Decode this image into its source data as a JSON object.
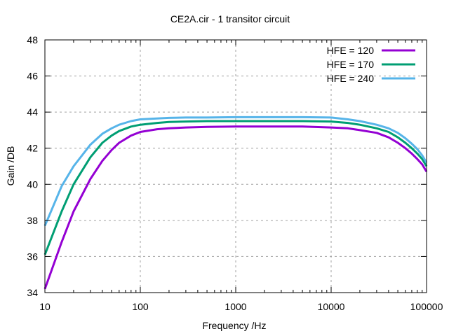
{
  "chart_data": {
    "type": "line",
    "title": "CE2A.cir - 1 transitor circuit",
    "xlabel": "Frequency /Hz",
    "ylabel": "Gain /DB",
    "xscale": "log",
    "xlim": [
      10,
      100000
    ],
    "ylim": [
      34,
      48
    ],
    "xticks": [
      10,
      100,
      1000,
      10000,
      100000
    ],
    "xtick_labels": [
      "10",
      "100",
      "1000",
      "10000",
      "100000"
    ],
    "yticks": [
      34,
      36,
      38,
      40,
      42,
      44,
      46,
      48
    ],
    "ytick_labels": [
      "34",
      "36",
      "38",
      "40",
      "42",
      "44",
      "46",
      "48"
    ],
    "grid": true,
    "legend_position": "top-right",
    "series": [
      {
        "name": "HFE = 120",
        "color": "#9400d3",
        "x": [
          10,
          15,
          20,
          30,
          40,
          50,
          60,
          80,
          100,
          150,
          200,
          300,
          500,
          1000,
          2000,
          5000,
          10000,
          15000,
          20000,
          30000,
          40000,
          50000,
          60000,
          70000,
          80000,
          90000,
          100000
        ],
        "y": [
          34.2,
          36.8,
          38.5,
          40.3,
          41.3,
          41.9,
          42.3,
          42.7,
          42.9,
          43.05,
          43.1,
          43.15,
          43.18,
          43.2,
          43.2,
          43.2,
          43.15,
          43.1,
          43.0,
          42.85,
          42.6,
          42.3,
          42.0,
          41.7,
          41.4,
          41.1,
          40.7
        ]
      },
      {
        "name": "HFE = 170",
        "color": "#009e73",
        "x": [
          10,
          15,
          20,
          30,
          40,
          50,
          60,
          80,
          100,
          150,
          200,
          300,
          500,
          1000,
          2000,
          5000,
          10000,
          15000,
          20000,
          30000,
          40000,
          50000,
          60000,
          70000,
          80000,
          90000,
          100000
        ],
        "y": [
          36.1,
          38.5,
          40.0,
          41.5,
          42.3,
          42.7,
          42.95,
          43.2,
          43.3,
          43.4,
          43.45,
          43.48,
          43.5,
          43.5,
          43.5,
          43.5,
          43.48,
          43.4,
          43.3,
          43.1,
          42.9,
          42.6,
          42.3,
          42.0,
          41.7,
          41.4,
          41.0
        ]
      },
      {
        "name": "HFE = 240",
        "color": "#56b4e9",
        "x": [
          10,
          15,
          20,
          30,
          40,
          50,
          60,
          80,
          100,
          150,
          200,
          300,
          500,
          1000,
          2000,
          5000,
          10000,
          15000,
          20000,
          30000,
          40000,
          50000,
          60000,
          70000,
          80000,
          90000,
          100000
        ],
        "y": [
          37.7,
          39.9,
          41.0,
          42.2,
          42.8,
          43.1,
          43.3,
          43.5,
          43.6,
          43.65,
          43.68,
          43.7,
          43.7,
          43.72,
          43.72,
          43.72,
          43.7,
          43.6,
          43.5,
          43.3,
          43.1,
          42.85,
          42.55,
          42.25,
          41.95,
          41.6,
          41.2
        ]
      }
    ]
  }
}
